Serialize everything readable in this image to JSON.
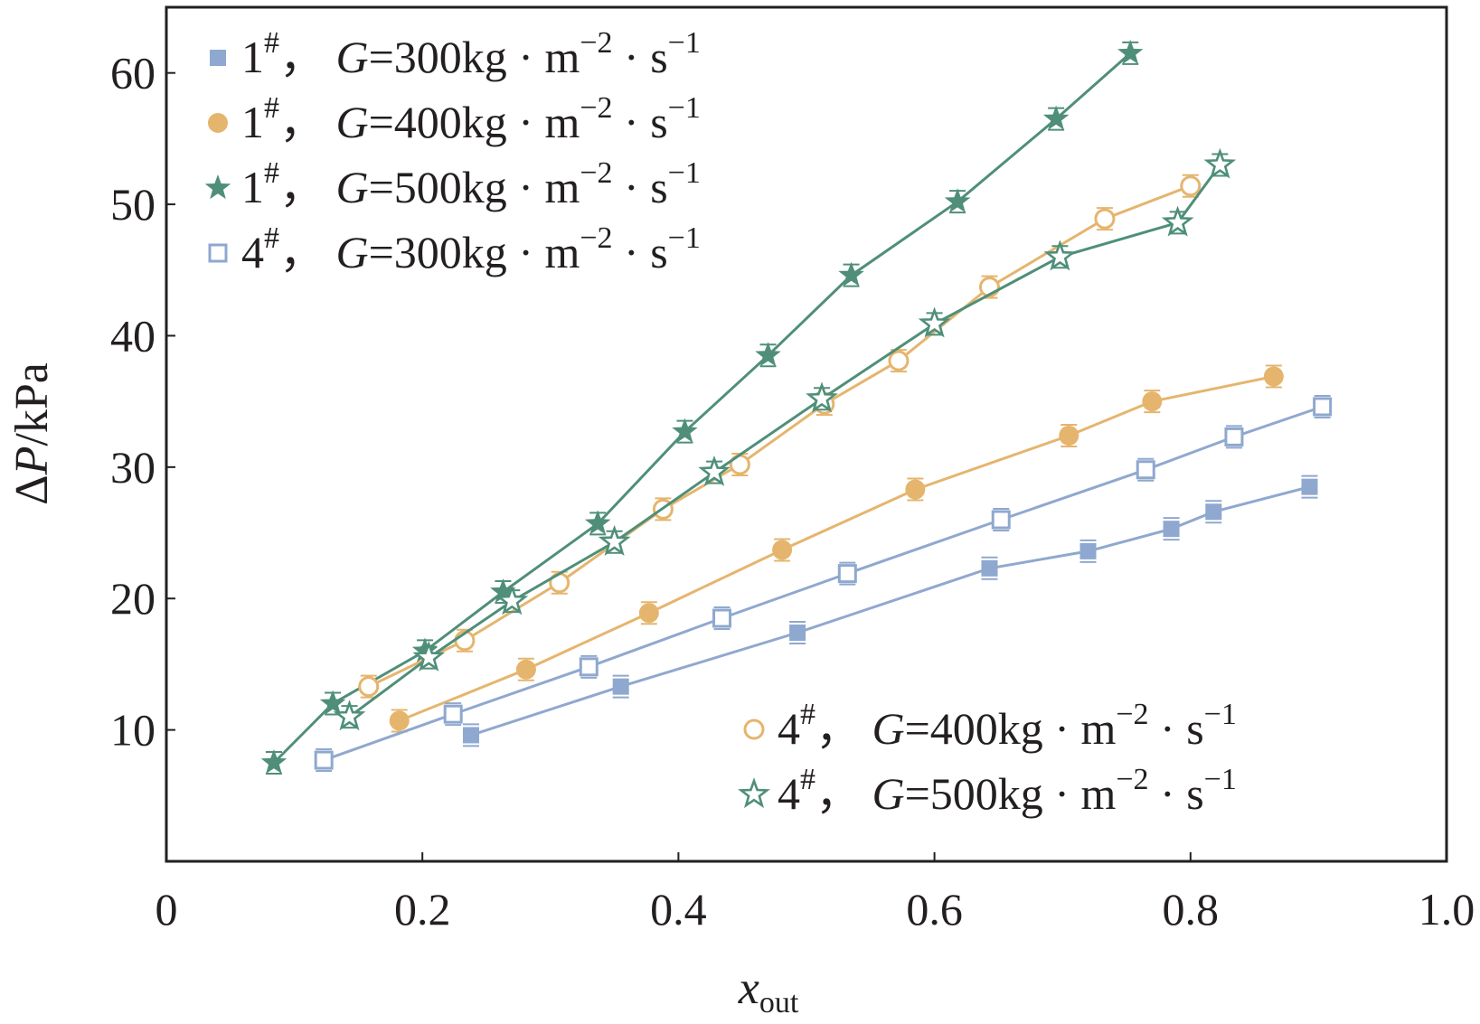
{
  "chart_data": {
    "type": "line",
    "title": "",
    "xlabel": "x",
    "xlabel_sub": "out",
    "ylabel": "ΔP/kPa",
    "ylabel_parts": {
      "delta": "Δ",
      "var": "P",
      "unit": "/kPa"
    },
    "xlim": [
      0,
      1.0
    ],
    "ylim": [
      0,
      65
    ],
    "xticks": [
      0,
      0.2,
      0.4,
      0.6,
      0.8,
      1.0
    ],
    "xtick_labels": [
      "0",
      "0.2",
      "0.4",
      "0.6",
      "0.8",
      "1.0"
    ],
    "yticks": [
      10,
      20,
      30,
      40,
      50,
      60
    ],
    "ytick_labels": [
      "10",
      "20",
      "30",
      "40",
      "50",
      "60"
    ],
    "grid": false,
    "series": [
      {
        "name": "1#, G=300kg·m−2·s−1",
        "label": {
          "sample": "1",
          "sample_sup": "#",
          "sep": "，",
          "G": "G",
          "eq": "=300kg · m",
          "exp1": "−2",
          "mid": " · s",
          "exp2": "−1"
        },
        "color": "#8fa8cf",
        "marker": "square-filled",
        "legend_pos": "top-left",
        "x": [
          0.238,
          0.355,
          0.493,
          0.643,
          0.72,
          0.785,
          0.818,
          0.893
        ],
        "y": [
          9.6,
          13.3,
          17.4,
          22.3,
          23.6,
          25.3,
          26.6,
          28.5
        ]
      },
      {
        "name": "1#, G=400kg·m−2·s−1",
        "label": {
          "sample": "1",
          "sample_sup": "#",
          "sep": "，",
          "G": "G",
          "eq": "=400kg · m",
          "exp1": "−2",
          "mid": " · s",
          "exp2": "−1"
        },
        "color": "#e5b56e",
        "marker": "circle-filled",
        "legend_pos": "top-left",
        "x": [
          0.182,
          0.281,
          0.377,
          0.481,
          0.585,
          0.705,
          0.77,
          0.865
        ],
        "y": [
          10.7,
          14.6,
          18.9,
          23.7,
          28.3,
          32.4,
          35.0,
          36.9
        ]
      },
      {
        "name": "1#, G=500kg·m−2·s−1",
        "label": {
          "sample": "1",
          "sample_sup": "#",
          "sep": "，",
          "G": "G",
          "eq": "=500kg · m",
          "exp1": "−2",
          "mid": " · s",
          "exp2": "−1"
        },
        "color": "#4f8f79",
        "marker": "star-filled",
        "legend_pos": "top-left",
        "x": [
          0.084,
          0.13,
          0.202,
          0.263,
          0.337,
          0.405,
          0.47,
          0.535,
          0.618,
          0.695,
          0.753
        ],
        "y": [
          7.5,
          12.0,
          16.0,
          20.5,
          25.7,
          32.7,
          38.5,
          44.6,
          50.2,
          56.5,
          61.5
        ]
      },
      {
        "name": "4#, G=300kg·m−2·s−1",
        "label": {
          "sample": "4",
          "sample_sup": "#",
          "sep": "，",
          "G": "G",
          "eq": "=300kg · m",
          "exp1": "−2",
          "mid": " · s",
          "exp2": "−1"
        },
        "color": "#8fa8cf",
        "marker": "square-open",
        "legend_pos": "top-left",
        "x": [
          0.123,
          0.224,
          0.33,
          0.434,
          0.532,
          0.652,
          0.765,
          0.834,
          0.903
        ],
        "y": [
          7.7,
          11.2,
          14.8,
          18.5,
          21.9,
          26.0,
          29.8,
          32.3,
          34.6
        ]
      },
      {
        "name": "4#, G=400kg·m−2·s−1",
        "label": {
          "sample": "4",
          "sample_sup": "#",
          "sep": "，",
          "G": "G",
          "eq": "=400kg · m",
          "exp1": "−2",
          "mid": " · s",
          "exp2": "−1"
        },
        "color": "#e5b56e",
        "marker": "circle-open",
        "legend_pos": "bottom-right",
        "x": [
          0.158,
          0.233,
          0.307,
          0.388,
          0.448,
          0.514,
          0.572,
          0.643,
          0.733,
          0.8
        ],
        "y": [
          13.3,
          16.8,
          21.2,
          26.8,
          30.2,
          34.8,
          38.1,
          43.7,
          48.9,
          51.4
        ]
      },
      {
        "name": "4#, G=500kg·m−2·s−1",
        "label": {
          "sample": "4",
          "sample_sup": "#",
          "sep": "，",
          "G": "G",
          "eq": "=500kg · m",
          "exp1": "−2",
          "mid": " · s",
          "exp2": "−1"
        },
        "color": "#4f8f79",
        "marker": "star-open",
        "legend_pos": "bottom-right",
        "x": [
          0.143,
          0.205,
          0.27,
          0.35,
          0.428,
          0.512,
          0.6,
          0.698,
          0.79,
          0.823
        ],
        "y": [
          11.0,
          15.5,
          19.8,
          24.3,
          29.6,
          35.2,
          40.9,
          46.0,
          48.6,
          53.0
        ]
      }
    ]
  }
}
